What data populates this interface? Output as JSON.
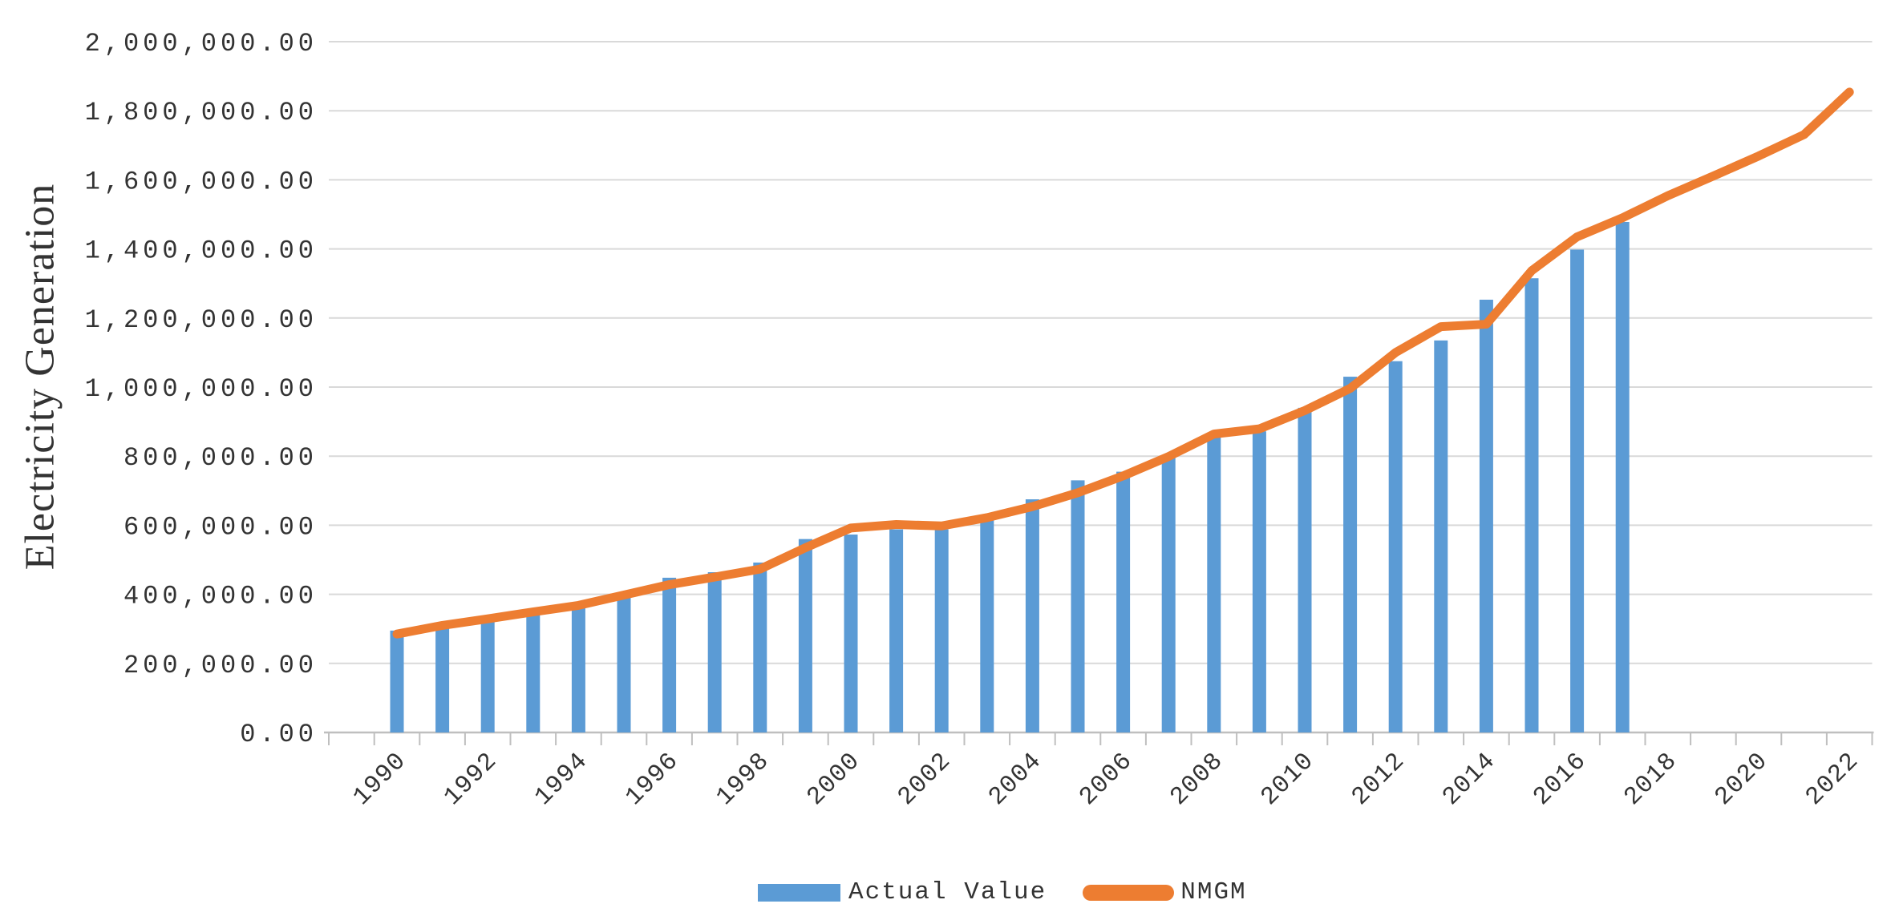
{
  "page": {
    "background_color": "#ffffff",
    "text_color": "#333333"
  },
  "y_axis": {
    "title": "Electricity Generation",
    "tick_labels": [
      "0.00",
      "200,000.00",
      "400,000.00",
      "600,000.00",
      "800,000.00",
      "1,000,000.00",
      "1,200,000.00",
      "1,400,000.00",
      "1,600,000.00",
      "1,800,000.00",
      "2,000,000.00"
    ],
    "min": 0,
    "max": 2000000,
    "step": 200000
  },
  "x_axis": {
    "tick_labels": [
      "1990",
      "1992",
      "1994",
      "1996",
      "1998",
      "2000",
      "2002",
      "2004",
      "2006",
      "2008",
      "2010",
      "2012",
      "2014",
      "2016",
      "2018",
      "2020",
      "2022"
    ]
  },
  "legend": {
    "items": [
      {
        "label": "Actual Value",
        "swatch": "bar",
        "color": "#5B9BD5"
      },
      {
        "label": "NMGM",
        "swatch": "line",
        "color": "#ED7D31"
      }
    ]
  },
  "colors": {
    "bar": "#5B9BD5",
    "line": "#ED7D31",
    "gridline": "#D9D9D9",
    "axis": "#BFBFBF",
    "label_text": "#333333"
  },
  "chart_data": {
    "type": "bar",
    "title": "",
    "xlabel": "",
    "ylabel": "Electricity Generation",
    "ylim": [
      0,
      2000000
    ],
    "y_step": 200000,
    "grid": true,
    "legend_position": "bottom",
    "x": [
      1990,
      1991,
      1992,
      1993,
      1994,
      1995,
      1996,
      1997,
      1998,
      1999,
      2000,
      2001,
      2002,
      2003,
      2004,
      2005,
      2006,
      2007,
      2008,
      2009,
      2010,
      2011,
      2012,
      2013,
      2014,
      2015,
      2016,
      2017,
      2018,
      2019,
      2020,
      2021,
      2022
    ],
    "series": [
      {
        "name": "Actual Value",
        "type": "bar",
        "color": "#5B9BD5",
        "values": [
          295000,
          310000,
          327000,
          348000,
          367000,
          395000,
          448000,
          464000,
          492000,
          560000,
          573000,
          588000,
          588000,
          625000,
          675000,
          730000,
          755000,
          800000,
          858000,
          872000,
          940000,
          1030000,
          1075000,
          1135000,
          1253000,
          1315000,
          1398000,
          1478000,
          null,
          null,
          null,
          null,
          null
        ]
      },
      {
        "name": "NMGM",
        "type": "line",
        "color": "#ED7D31",
        "values": [
          285000,
          310000,
          329000,
          349000,
          368000,
          398000,
          428000,
          450000,
          473000,
          535000,
          592000,
          602000,
          598000,
          622000,
          654000,
          694000,
          743000,
          799000,
          864000,
          879000,
          932000,
          996000,
          1100000,
          1175000,
          1182000,
          1337000,
          1435000,
          1490000,
          1554000,
          1611000,
          1669000,
          1731000,
          1854000
        ]
      }
    ]
  }
}
